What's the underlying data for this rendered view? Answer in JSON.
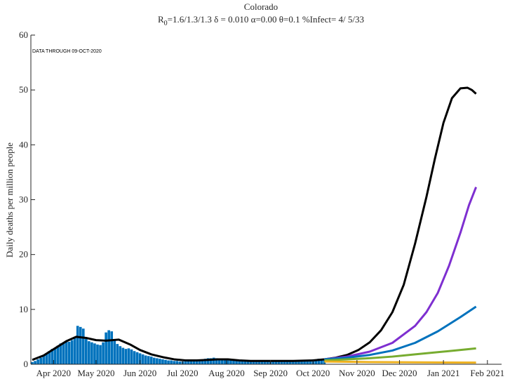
{
  "chart_data": {
    "type": "bar",
    "title": "Colorado",
    "subtitle": [
      "R",
      "0",
      "=1.6/1.3/1.3  δ = 0.010  α=0.00  θ=0.1  %Infect= 4/ 5/33"
    ],
    "annotation": "DATA THROUGH 09-OCT-2020",
    "ylabel": "Daily deaths per million people",
    "xlim": [
      75,
      407
    ],
    "xticks": [
      {
        "value": 91,
        "label": "Apr 2020"
      },
      {
        "value": 121,
        "label": "May 2020"
      },
      {
        "value": 152,
        "label": "Jun 2020"
      },
      {
        "value": 182,
        "label": "Jul 2020"
      },
      {
        "value": 213,
        "label": "Aug 2020"
      },
      {
        "value": 244,
        "label": "Sep 2020"
      },
      {
        "value": 274,
        "label": "Oct 2020"
      },
      {
        "value": 305,
        "label": "Nov 2020"
      },
      {
        "value": 335,
        "label": "Dec 2020"
      },
      {
        "value": 366,
        "label": "Jan 2021"
      },
      {
        "value": 397,
        "label": "Feb 2021"
      }
    ],
    "ylim": [
      0,
      60
    ],
    "yticks": [
      0,
      10,
      20,
      30,
      40,
      50,
      60
    ],
    "series": [
      {
        "type": "bar",
        "color": "#0072bd",
        "x": [
          76,
          78,
          80,
          82,
          84,
          86,
          88,
          90,
          92,
          94,
          96,
          98,
          100,
          102,
          104,
          106,
          108,
          110,
          112,
          114,
          116,
          118,
          120,
          122,
          124,
          126,
          128,
          130,
          132,
          134,
          136,
          138,
          140,
          142,
          144,
          146,
          148,
          150,
          152,
          154,
          156,
          158,
          160,
          162,
          164,
          166,
          168,
          170,
          172,
          174,
          176,
          178,
          180,
          182,
          184,
          186,
          188,
          190,
          192,
          194,
          196,
          198,
          200,
          202,
          204,
          206,
          208,
          210,
          212,
          214,
          216,
          218,
          220,
          222,
          224,
          226,
          228,
          230,
          232,
          234,
          236,
          238,
          240,
          242,
          244,
          246,
          248,
          250,
          252,
          254,
          256,
          258,
          260,
          262,
          264,
          266,
          268,
          270,
          272,
          274,
          276,
          278,
          280,
          282
        ],
        "values": [
          0.4,
          0.6,
          0.9,
          1.2,
          1.6,
          2.0,
          2.4,
          2.8,
          3.0,
          3.4,
          3.8,
          4.0,
          4.3,
          4.1,
          4.4,
          5.0,
          7.0,
          6.8,
          6.5,
          4.6,
          4.2,
          4.0,
          3.8,
          3.6,
          3.5,
          4.0,
          5.8,
          6.2,
          6.0,
          4.5,
          3.7,
          3.3,
          3.0,
          2.8,
          2.9,
          2.7,
          2.4,
          2.2,
          2.0,
          1.8,
          1.6,
          1.5,
          1.4,
          1.2,
          1.1,
          1.0,
          0.9,
          0.8,
          0.7,
          0.7,
          0.6,
          0.6,
          0.5,
          0.5,
          0.5,
          0.6,
          0.6,
          0.7,
          0.7,
          0.8,
          0.9,
          1.0,
          1.1,
          1.1,
          1.2,
          1.1,
          1.0,
          1.0,
          0.9,
          0.8,
          0.7,
          0.7,
          0.6,
          0.6,
          0.6,
          0.6,
          0.5,
          0.5,
          0.6,
          0.6,
          0.6,
          0.6,
          0.6,
          0.5,
          0.6,
          0.6,
          0.6,
          0.6,
          0.6,
          0.6,
          0.7,
          0.6,
          0.7,
          0.7,
          0.7,
          0.8,
          0.7,
          0.8,
          0.8,
          0.9,
          0.9,
          1.0,
          0.9,
          1.0
        ]
      },
      {
        "type": "line",
        "color": "#000000",
        "x": [
          76,
          84,
          92,
          100,
          107,
          114,
          121,
          128,
          137,
          145,
          152,
          160,
          168,
          176,
          184,
          192,
          200,
          207,
          214,
          222,
          230,
          245,
          260,
          274,
          282,
          290,
          298,
          306,
          314,
          322,
          330,
          338,
          346,
          354,
          360,
          366,
          372,
          378,
          383,
          386,
          389
        ],
        "values": [
          0.8,
          1.6,
          2.9,
          4.2,
          5.0,
          4.8,
          4.4,
          4.3,
          4.5,
          3.6,
          2.6,
          1.8,
          1.3,
          0.9,
          0.7,
          0.7,
          0.8,
          0.9,
          0.9,
          0.7,
          0.6,
          0.6,
          0.6,
          0.7,
          0.9,
          1.2,
          1.7,
          2.6,
          4.0,
          6.2,
          9.5,
          14.5,
          22,
          30.5,
          37.5,
          44,
          48.5,
          50.3,
          50.4,
          50,
          49.3
        ]
      },
      {
        "type": "line",
        "color": "#7e2fd0",
        "x": [
          282,
          298,
          314,
          330,
          346,
          354,
          362,
          370,
          378,
          384,
          389
        ],
        "values": [
          0.9,
          1.4,
          2.3,
          3.9,
          7,
          9.5,
          13,
          18,
          24,
          29,
          32.3
        ]
      },
      {
        "type": "line",
        "color": "#0072bd",
        "x": [
          282,
          298,
          314,
          330,
          346,
          362,
          378,
          389
        ],
        "values": [
          0.9,
          1.2,
          1.7,
          2.5,
          3.9,
          6,
          8.6,
          10.5
        ]
      },
      {
        "type": "line",
        "color": "#77ac30",
        "x": [
          282,
          298,
          314,
          330,
          346,
          362,
          378,
          389
        ],
        "values": [
          0.7,
          0.9,
          1.1,
          1.4,
          1.8,
          2.2,
          2.6,
          2.9
        ]
      },
      {
        "type": "line",
        "color": "#edb120",
        "x": [
          282,
          314,
          346,
          389
        ],
        "values": [
          0.5,
          0.4,
          0.35,
          0.3
        ]
      }
    ]
  }
}
